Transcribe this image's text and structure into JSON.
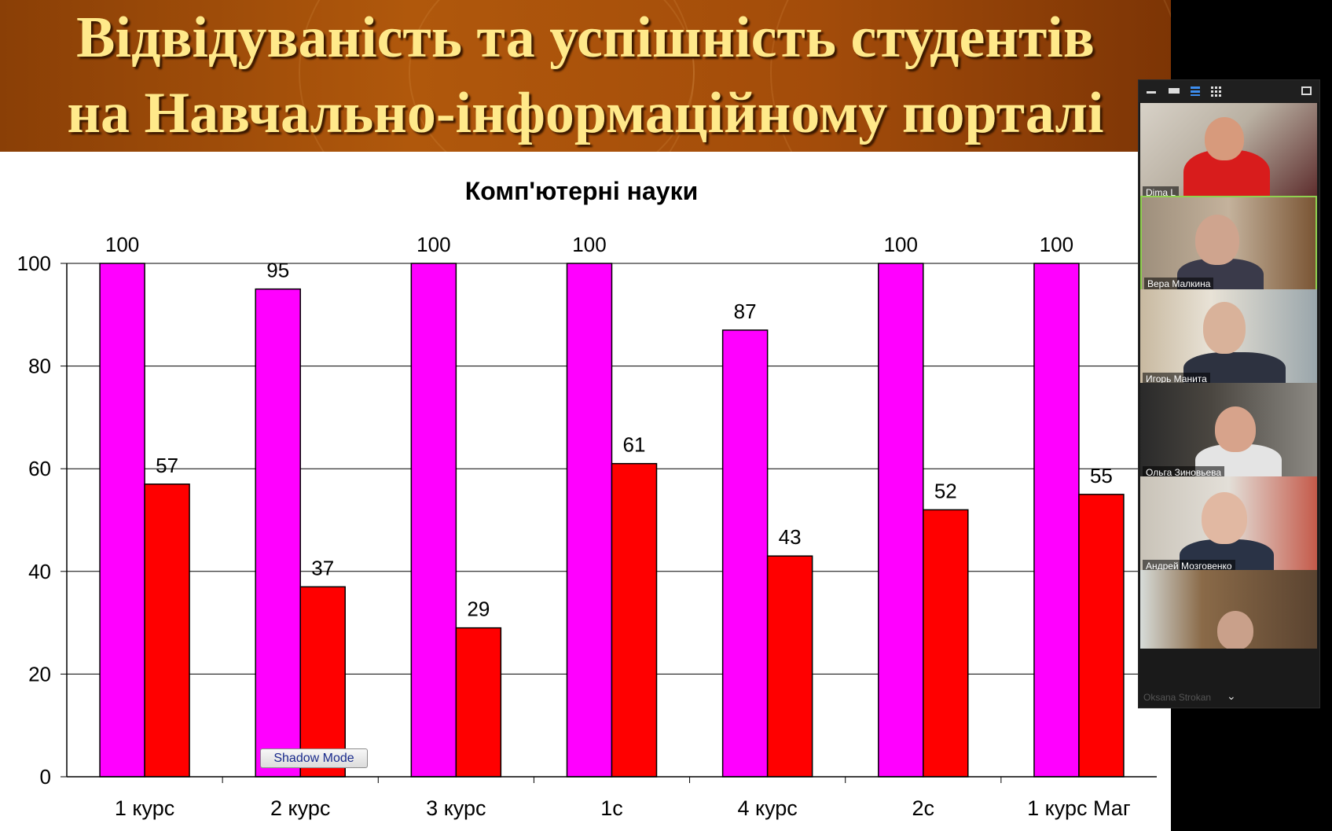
{
  "slide": {
    "title_line1": "Відвідуваність та успішність студентів",
    "title_line2": "на Навчально-інформаційному порталі"
  },
  "chart_data": {
    "type": "bar",
    "title": "Комп'ютерні науки",
    "categories": [
      "1 курс",
      "2 курс",
      "3 курс",
      "1с",
      "4 курс",
      "2с",
      "1 курс Маг"
    ],
    "series": [
      {
        "color": "#ff00ff",
        "values": [
          100,
          95,
          100,
          100,
          87,
          100,
          100
        ]
      },
      {
        "color": "#ff0000",
        "values": [
          57,
          37,
          29,
          61,
          43,
          52,
          55
        ]
      }
    ],
    "ylim": [
      0,
      100
    ],
    "yticks": [
      0,
      20,
      40,
      60,
      80,
      100
    ],
    "grid": true,
    "legend": "none",
    "data_labels": true
  },
  "shadow_mode": {
    "label": "Shadow Mode"
  },
  "participants": {
    "tiles": [
      {
        "name": "Dima L",
        "active": false
      },
      {
        "name": "Вера Малкина",
        "active": true
      },
      {
        "name": "Игорь Манита",
        "active": false
      },
      {
        "name": "Ольга Зиновьева",
        "active": false
      },
      {
        "name": "Андрей Мозговенко",
        "active": false
      }
    ],
    "overflow_name": "Oksana Strokan",
    "accent_color": "#8fd14f"
  }
}
